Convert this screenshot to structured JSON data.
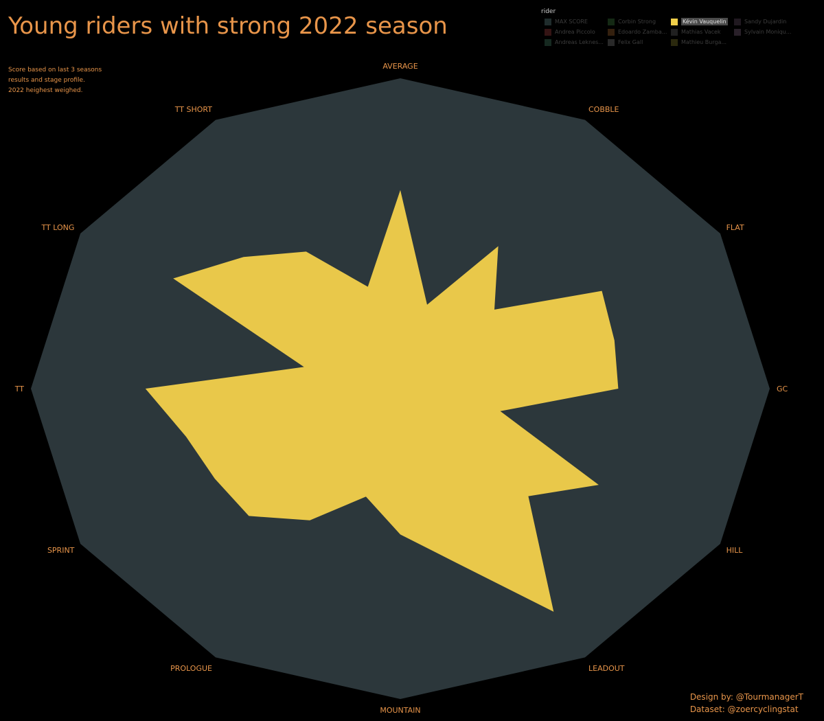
{
  "title": "Young riders with strong 2022 season",
  "subtitle_lines": [
    "Score based on last 3 seasons",
    "results and stage profile.",
    "2022 heighest weighed."
  ],
  "legend": {
    "title": "rider",
    "items": [
      {
        "label": "MAX SCORE",
        "color": "#2c3e3e",
        "active": false
      },
      {
        "label": "Andrea Piccolo",
        "color": "#4a1c1c",
        "active": false
      },
      {
        "label": "Andreas Leknes...",
        "color": "#1f3a2e",
        "active": false
      },
      {
        "label": "Corbin Strong",
        "color": "#1c3a1c",
        "active": false
      },
      {
        "label": "Edoardo Zamba...",
        "color": "#4a2e14",
        "active": false
      },
      {
        "label": "Felix Gall",
        "color": "#3a3a3a",
        "active": false
      },
      {
        "label": "Kévin Vauquelin",
        "color": "#f0cf4a",
        "active": true
      },
      {
        "label": "Mathias Vacek",
        "color": "#2e2e2e",
        "active": false
      },
      {
        "label": "Mathieu Burga...",
        "color": "#3d3a14",
        "active": false
      },
      {
        "label": "Sandy Dujardin",
        "color": "#2e242e",
        "active": false
      },
      {
        "label": "Sylvain Moniqu...",
        "color": "#3a2e3a",
        "active": false
      }
    ]
  },
  "chart_data": {
    "type": "radar",
    "axes": [
      "AVERAGE",
      "COBBLE",
      "FLAT",
      "GC",
      "HILL",
      "LEADOUT",
      "MOUNTAIN",
      "PROLOGUE",
      "SPRINT",
      "TT",
      "TT LONG",
      "TT SHORT"
    ],
    "series": [
      {
        "name": "MAX SCORE",
        "color": "#2c373b",
        "values": [
          1,
          1,
          1,
          1,
          1,
          1,
          1,
          1,
          1,
          1,
          1,
          1
        ],
        "inner": []
      },
      {
        "name": "Kévin Vauquelin",
        "color": "#e9c84a",
        "values": [
          0.64,
          0.53,
          0.63,
          0.59,
          0.62,
          0.83,
          0.47,
          0.49,
          0.58,
          0.69,
          0.71,
          0.51
        ],
        "inner": [
          0.28,
          0.36,
          0.6,
          0.28,
          0.49,
          0.58,
          0.36,
          0.58,
          0.6,
          0.27,
          0.6,
          0.34
        ]
      }
    ]
  },
  "credits": {
    "design": "Design by: @TourmanagerT",
    "dataset": "Dataset: @zoercyclingstat"
  }
}
